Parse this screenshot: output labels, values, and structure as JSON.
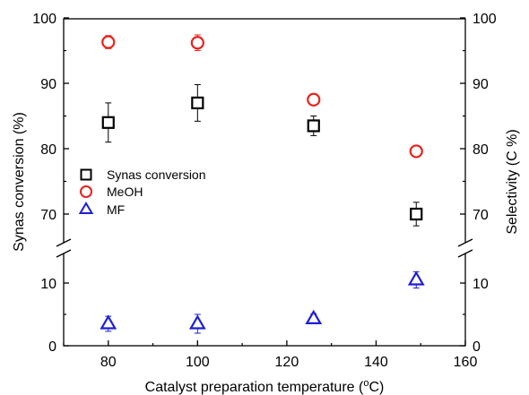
{
  "chart_data": {
    "type": "scatter",
    "xlabel": "Catalyst preparation temperature (",
    "xlabel_sup": "o",
    "xlabel_end": "C)",
    "ylabel_left": "Synas conversion (%)",
    "ylabel_right": "Selectivity (C %)",
    "xlim": [
      70,
      160
    ],
    "x_ticks": [
      80,
      100,
      120,
      140,
      160
    ],
    "y_ticks_lower": [
      0,
      10
    ],
    "y_ticks_upper": [
      70,
      80,
      90,
      100
    ],
    "y_break": "between 15 and 65",
    "legend_position": "middle-left",
    "colors": {
      "conversion": "#000000",
      "meoh": "#e8211b",
      "mf": "#1d1dd6"
    },
    "series": [
      {
        "name": "Synas conversion",
        "marker": "square",
        "color": "#000000",
        "axis": "left",
        "x": [
          80,
          100,
          126,
          149
        ],
        "y": [
          84.0,
          87.0,
          83.5,
          70.0
        ],
        "err": [
          3.0,
          2.8,
          1.5,
          1.8
        ]
      },
      {
        "name": "MeOH",
        "marker": "circle",
        "color": "#e8211b",
        "axis": "right",
        "x": [
          80,
          100,
          126,
          149
        ],
        "y": [
          96.3,
          96.2,
          87.5,
          79.6
        ],
        "err": [
          1.0,
          1.2,
          0.8,
          0.8
        ]
      },
      {
        "name": "MF",
        "marker": "triangle",
        "color": "#1d1dd6",
        "axis": "right",
        "x": [
          80,
          100,
          126,
          149
        ],
        "y": [
          3.5,
          3.5,
          4.3,
          10.5
        ],
        "err": [
          1.2,
          1.5,
          0.8,
          1.3
        ]
      }
    ]
  }
}
